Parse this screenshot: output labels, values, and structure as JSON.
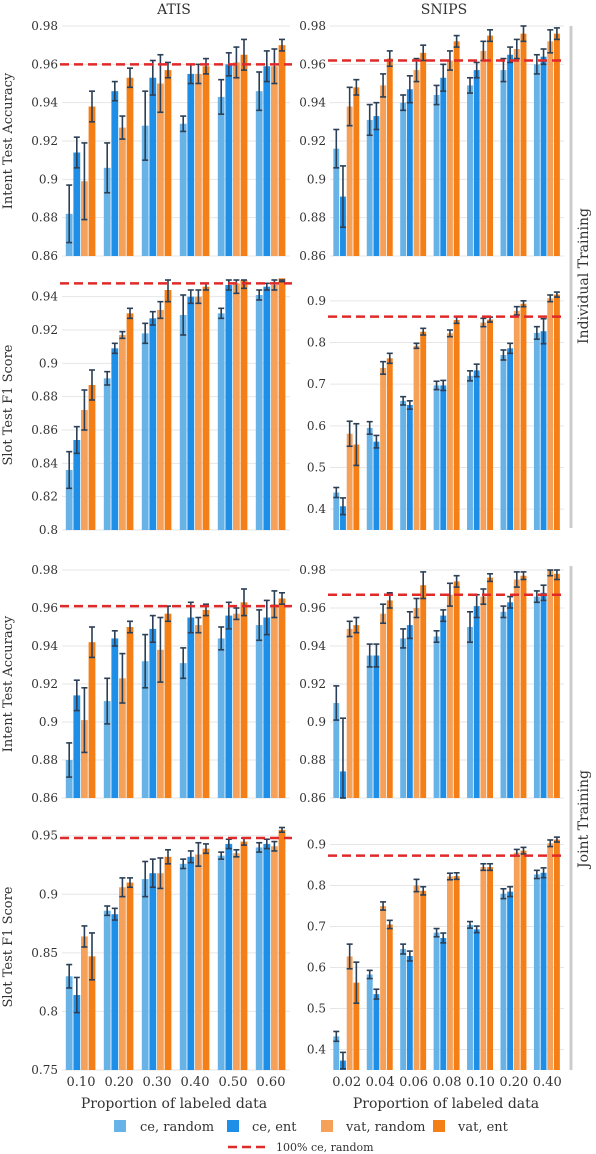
{
  "figure": {
    "columns": [
      "ATIS",
      "SNIPS"
    ],
    "rows": [
      "Individual Training",
      "Joint Training"
    ],
    "xlabel": "Proportion of labeled data"
  },
  "legend": {
    "items": [
      {
        "label": "ce, random",
        "color": "#67b3e8"
      },
      {
        "label": "ce, ent",
        "color": "#1f8ee6"
      },
      {
        "label": "vat, random",
        "color": "#f6a15a"
      },
      {
        "label": "vat, ent",
        "color": "#f57f17"
      }
    ],
    "baseline_label": "100% ce, random",
    "baseline_color": "#e02a2a"
  },
  "chart_data": [
    {
      "type": "bar",
      "dataset": "ATIS",
      "training": "Individual Training",
      "ylabel": "Intent Test Accuracy",
      "ylim": [
        0.86,
        0.98
      ],
      "yticks": [
        0.86,
        0.88,
        0.9,
        0.92,
        0.94,
        0.96,
        0.98
      ],
      "yticklabels": [
        "0.86",
        "0.88",
        "0.9",
        "0.92",
        "0.94",
        "0.96",
        "0.98"
      ],
      "categories": [
        "0.10",
        "0.20",
        "0.30",
        "0.40",
        "0.50",
        "0.60"
      ],
      "show_xticks": false,
      "baseline": 0.96,
      "series": [
        {
          "name": "ce, random",
          "values": [
            0.882,
            0.906,
            0.928,
            0.929,
            0.943,
            0.946
          ],
          "errors": [
            0.015,
            0.013,
            0.018,
            0.004,
            0.009,
            0.01
          ]
        },
        {
          "name": "ce, ent",
          "values": [
            0.914,
            0.946,
            0.953,
            0.955,
            0.96,
            0.959
          ],
          "errors": [
            0.008,
            0.005,
            0.009,
            0.005,
            0.006,
            0.008
          ]
        },
        {
          "name": "vat, random",
          "values": [
            0.899,
            0.927,
            0.95,
            0.955,
            0.961,
            0.959
          ],
          "errors": [
            0.02,
            0.006,
            0.015,
            0.005,
            0.008,
            0.009
          ]
        },
        {
          "name": "vat, ent",
          "values": [
            0.938,
            0.953,
            0.957,
            0.959,
            0.965,
            0.97
          ],
          "errors": [
            0.008,
            0.005,
            0.004,
            0.004,
            0.008,
            0.003
          ]
        }
      ]
    },
    {
      "type": "bar",
      "dataset": "SNIPS",
      "training": "Individual Training",
      "ylabel": "",
      "ylim": [
        0.86,
        0.98
      ],
      "yticks": [
        0.86,
        0.88,
        0.9,
        0.92,
        0.94,
        0.96,
        0.98
      ],
      "yticklabels": [
        "0.86",
        "0.88",
        "0.9",
        "0.92",
        "0.94",
        "0.96",
        "0.98"
      ],
      "categories": [
        "0.02",
        "0.04",
        "0.06",
        "0.08",
        "0.10",
        "0.20",
        "0.40"
      ],
      "show_xticks": false,
      "baseline": 0.962,
      "series": [
        {
          "name": "ce, random",
          "values": [
            0.916,
            0.931,
            0.94,
            0.944,
            0.949,
            0.957,
            0.96
          ],
          "errors": [
            0.01,
            0.008,
            0.004,
            0.005,
            0.004,
            0.006,
            0.005
          ]
        },
        {
          "name": "ce, ent",
          "values": [
            0.891,
            0.933,
            0.947,
            0.953,
            0.957,
            0.965,
            0.964
          ],
          "errors": [
            0.016,
            0.007,
            0.007,
            0.007,
            0.004,
            0.004,
            0.004
          ]
        },
        {
          "name": "vat, random",
          "values": [
            0.938,
            0.949,
            0.957,
            0.962,
            0.967,
            0.968,
            0.972
          ],
          "errors": [
            0.01,
            0.006,
            0.006,
            0.005,
            0.005,
            0.005,
            0.006
          ]
        },
        {
          "name": "vat, ent",
          "values": [
            0.948,
            0.963,
            0.966,
            0.972,
            0.975,
            0.976,
            0.976
          ],
          "errors": [
            0.004,
            0.004,
            0.004,
            0.003,
            0.003,
            0.004,
            0.003
          ]
        }
      ]
    },
    {
      "type": "bar",
      "dataset": "ATIS",
      "training": "Individual Training",
      "ylabel": "Slot Test F1 Score",
      "ylim": [
        0.8,
        0.95
      ],
      "yticks": [
        0.8,
        0.82,
        0.84,
        0.86,
        0.88,
        0.9,
        0.92,
        0.94
      ],
      "yticklabels": [
        "0.8",
        "0.82",
        "0.84",
        "0.86",
        "0.88",
        "0.9",
        "0.92",
        "0.94"
      ],
      "categories": [
        "0.10",
        "0.20",
        "0.30",
        "0.40",
        "0.50",
        "0.60"
      ],
      "show_xticks": false,
      "baseline": 0.948,
      "series": [
        {
          "name": "ce, random",
          "values": [
            0.836,
            0.891,
            0.918,
            0.929,
            0.93,
            0.941
          ],
          "errors": [
            0.011,
            0.004,
            0.006,
            0.012,
            0.003,
            0.003
          ]
        },
        {
          "name": "ce, ent",
          "values": [
            0.854,
            0.909,
            0.927,
            0.94,
            0.947,
            0.946
          ],
          "errors": [
            0.008,
            0.003,
            0.004,
            0.004,
            0.003,
            0.002
          ]
        },
        {
          "name": "vat, random",
          "values": [
            0.872,
            0.917,
            0.932,
            0.94,
            0.948,
            0.947
          ],
          "errors": [
            0.012,
            0.002,
            0.005,
            0.004,
            0.006,
            0.003
          ]
        },
        {
          "name": "vat, ent",
          "values": [
            0.887,
            0.93,
            0.944,
            0.946,
            0.95,
            0.951
          ],
          "errors": [
            0.009,
            0.003,
            0.007,
            0.002,
            0.005,
            0.002
          ]
        }
      ]
    },
    {
      "type": "bar",
      "dataset": "SNIPS",
      "training": "Individual Training",
      "ylabel": "",
      "ylim": [
        0.35,
        0.95
      ],
      "yticks": [
        0.4,
        0.5,
        0.6,
        0.7,
        0.8,
        0.9
      ],
      "yticklabels": [
        "0.4",
        "0.5",
        "0.6",
        "0.7",
        "0.8",
        "0.9"
      ],
      "categories": [
        "0.02",
        "0.04",
        "0.06",
        "0.08",
        "0.10",
        "0.20",
        "0.40"
      ],
      "show_xticks": false,
      "baseline": 0.862,
      "series": [
        {
          "name": "ce, random",
          "values": [
            0.44,
            0.595,
            0.66,
            0.697,
            0.72,
            0.77,
            0.823
          ],
          "errors": [
            0.012,
            0.015,
            0.01,
            0.01,
            0.012,
            0.012,
            0.015
          ]
        },
        {
          "name": "ce, ent",
          "values": [
            0.407,
            0.562,
            0.65,
            0.697,
            0.733,
            0.786,
            0.827
          ],
          "errors": [
            0.02,
            0.015,
            0.01,
            0.012,
            0.015,
            0.012,
            0.03
          ]
        },
        {
          "name": "vat, random",
          "values": [
            0.581,
            0.739,
            0.792,
            0.822,
            0.848,
            0.876,
            0.906
          ],
          "errors": [
            0.03,
            0.015,
            0.006,
            0.008,
            0.01,
            0.01,
            0.008
          ]
        },
        {
          "name": "vat, ent",
          "values": [
            0.555,
            0.762,
            0.826,
            0.854,
            0.855,
            0.893,
            0.915
          ],
          "errors": [
            0.05,
            0.012,
            0.008,
            0.008,
            0.006,
            0.007,
            0.006
          ]
        }
      ]
    },
    {
      "type": "bar",
      "dataset": "ATIS",
      "training": "Joint Training",
      "ylabel": "Intent Test Accuracy",
      "ylim": [
        0.86,
        0.98
      ],
      "yticks": [
        0.86,
        0.88,
        0.9,
        0.92,
        0.94,
        0.96,
        0.98
      ],
      "yticklabels": [
        "0.86",
        "0.88",
        "0.9",
        "0.92",
        "0.94",
        "0.96",
        "0.98"
      ],
      "categories": [
        "0.10",
        "0.20",
        "0.30",
        "0.40",
        "0.50",
        "0.60"
      ],
      "show_xticks": false,
      "baseline": 0.961,
      "series": [
        {
          "name": "ce, random",
          "values": [
            0.88,
            0.911,
            0.932,
            0.931,
            0.944,
            0.951
          ],
          "errors": [
            0.009,
            0.012,
            0.014,
            0.008,
            0.006,
            0.008
          ]
        },
        {
          "name": "ce, ent",
          "values": [
            0.914,
            0.944,
            0.949,
            0.955,
            0.956,
            0.955
          ],
          "errors": [
            0.008,
            0.004,
            0.007,
            0.008,
            0.007,
            0.009
          ]
        },
        {
          "name": "vat, random",
          "values": [
            0.901,
            0.923,
            0.938,
            0.951,
            0.957,
            0.962
          ],
          "errors": [
            0.017,
            0.013,
            0.017,
            0.004,
            0.003,
            0.007
          ]
        },
        {
          "name": "vat, ent",
          "values": [
            0.942,
            0.95,
            0.957,
            0.959,
            0.963,
            0.965
          ],
          "errors": [
            0.008,
            0.003,
            0.004,
            0.003,
            0.007,
            0.003
          ]
        }
      ]
    },
    {
      "type": "bar",
      "dataset": "SNIPS",
      "training": "Joint Training",
      "ylabel": "",
      "ylim": [
        0.86,
        0.98
      ],
      "yticks": [
        0.86,
        0.88,
        0.9,
        0.92,
        0.94,
        0.96,
        0.98
      ],
      "yticklabels": [
        "0.86",
        "0.88",
        "0.9",
        "0.92",
        "0.94",
        "0.96",
        "0.98"
      ],
      "categories": [
        "0.02",
        "0.04",
        "0.06",
        "0.08",
        "0.10",
        "0.20",
        "0.40"
      ],
      "show_xticks": false,
      "baseline": 0.967,
      "series": [
        {
          "name": "ce, random",
          "values": [
            0.91,
            0.935,
            0.944,
            0.945,
            0.95,
            0.958,
            0.966
          ],
          "errors": [
            0.009,
            0.006,
            0.005,
            0.003,
            0.008,
            0.003,
            0.003
          ]
        },
        {
          "name": "ce, ent",
          "values": [
            0.874,
            0.935,
            0.951,
            0.956,
            0.961,
            0.963,
            0.968
          ],
          "errors": [
            0.028,
            0.006,
            0.007,
            0.003,
            0.006,
            0.003,
            0.004
          ]
        },
        {
          "name": "vat, random",
          "values": [
            0.949,
            0.957,
            0.96,
            0.967,
            0.966,
            0.975,
            0.98
          ],
          "errors": [
            0.004,
            0.005,
            0.005,
            0.006,
            0.004,
            0.004,
            0.003
          ]
        },
        {
          "name": "vat, ent",
          "values": [
            0.951,
            0.964,
            0.972,
            0.974,
            0.976,
            0.977,
            0.978
          ],
          "errors": [
            0.004,
            0.004,
            0.007,
            0.003,
            0.002,
            0.002,
            0.003
          ]
        }
      ]
    },
    {
      "type": "bar",
      "dataset": "ATIS",
      "training": "Joint Training",
      "ylabel": "Slot Test F1 Score",
      "ylim": [
        0.75,
        0.96
      ],
      "yticks": [
        0.75,
        0.8,
        0.85,
        0.9,
        0.95
      ],
      "yticklabels": [
        "0.75",
        "0.8",
        "0.85",
        "0.9",
        "0.95"
      ],
      "categories": [
        "0.10",
        "0.20",
        "0.30",
        "0.40",
        "0.50",
        "0.60"
      ],
      "show_xticks": true,
      "baseline": 0.948,
      "series": [
        {
          "name": "ce, random",
          "values": [
            0.83,
            0.886,
            0.913,
            0.926,
            0.933,
            0.94
          ],
          "errors": [
            0.01,
            0.004,
            0.015,
            0.004,
            0.003,
            0.004
          ]
        },
        {
          "name": "ce, ent",
          "values": [
            0.814,
            0.883,
            0.918,
            0.932,
            0.943,
            0.943
          ],
          "errors": [
            0.015,
            0.005,
            0.012,
            0.005,
            0.004,
            0.004
          ]
        },
        {
          "name": "vat, random",
          "values": [
            0.864,
            0.906,
            0.918,
            0.934,
            0.935,
            0.941
          ],
          "errors": [
            0.009,
            0.008,
            0.013,
            0.01,
            0.003,
            0.004
          ]
        },
        {
          "name": "vat, ent",
          "values": [
            0.847,
            0.91,
            0.932,
            0.939,
            0.945,
            0.955
          ],
          "errors": [
            0.02,
            0.004,
            0.006,
            0.004,
            0.003,
            0.002
          ]
        }
      ]
    },
    {
      "type": "bar",
      "dataset": "SNIPS",
      "training": "Joint Training",
      "ylabel": "",
      "ylim": [
        0.35,
        0.95
      ],
      "yticks": [
        0.4,
        0.5,
        0.6,
        0.7,
        0.8,
        0.9
      ],
      "yticklabels": [
        "0.4",
        "0.5",
        "0.6",
        "0.7",
        "0.8",
        "0.9"
      ],
      "categories": [
        "0.02",
        "0.04",
        "0.06",
        "0.08",
        "0.10",
        "0.20",
        "0.40"
      ],
      "show_xticks": true,
      "baseline": 0.873,
      "series": [
        {
          "name": "ce, random",
          "values": [
            0.432,
            0.583,
            0.645,
            0.685,
            0.704,
            0.78,
            0.827
          ],
          "errors": [
            0.012,
            0.01,
            0.012,
            0.01,
            0.008,
            0.012,
            0.01
          ]
        },
        {
          "name": "ce, ent",
          "values": [
            0.373,
            0.535,
            0.628,
            0.672,
            0.693,
            0.785,
            0.831
          ],
          "errors": [
            0.02,
            0.012,
            0.012,
            0.012,
            0.008,
            0.012,
            0.012
          ]
        },
        {
          "name": "vat, random",
          "values": [
            0.627,
            0.75,
            0.8,
            0.822,
            0.845,
            0.88,
            0.903
          ],
          "errors": [
            0.03,
            0.01,
            0.015,
            0.008,
            0.008,
            0.008,
            0.008
          ]
        },
        {
          "name": "vat, ent",
          "values": [
            0.563,
            0.705,
            0.787,
            0.823,
            0.845,
            0.885,
            0.912
          ],
          "errors": [
            0.05,
            0.01,
            0.01,
            0.008,
            0.008,
            0.008,
            0.006
          ]
        }
      ]
    }
  ]
}
